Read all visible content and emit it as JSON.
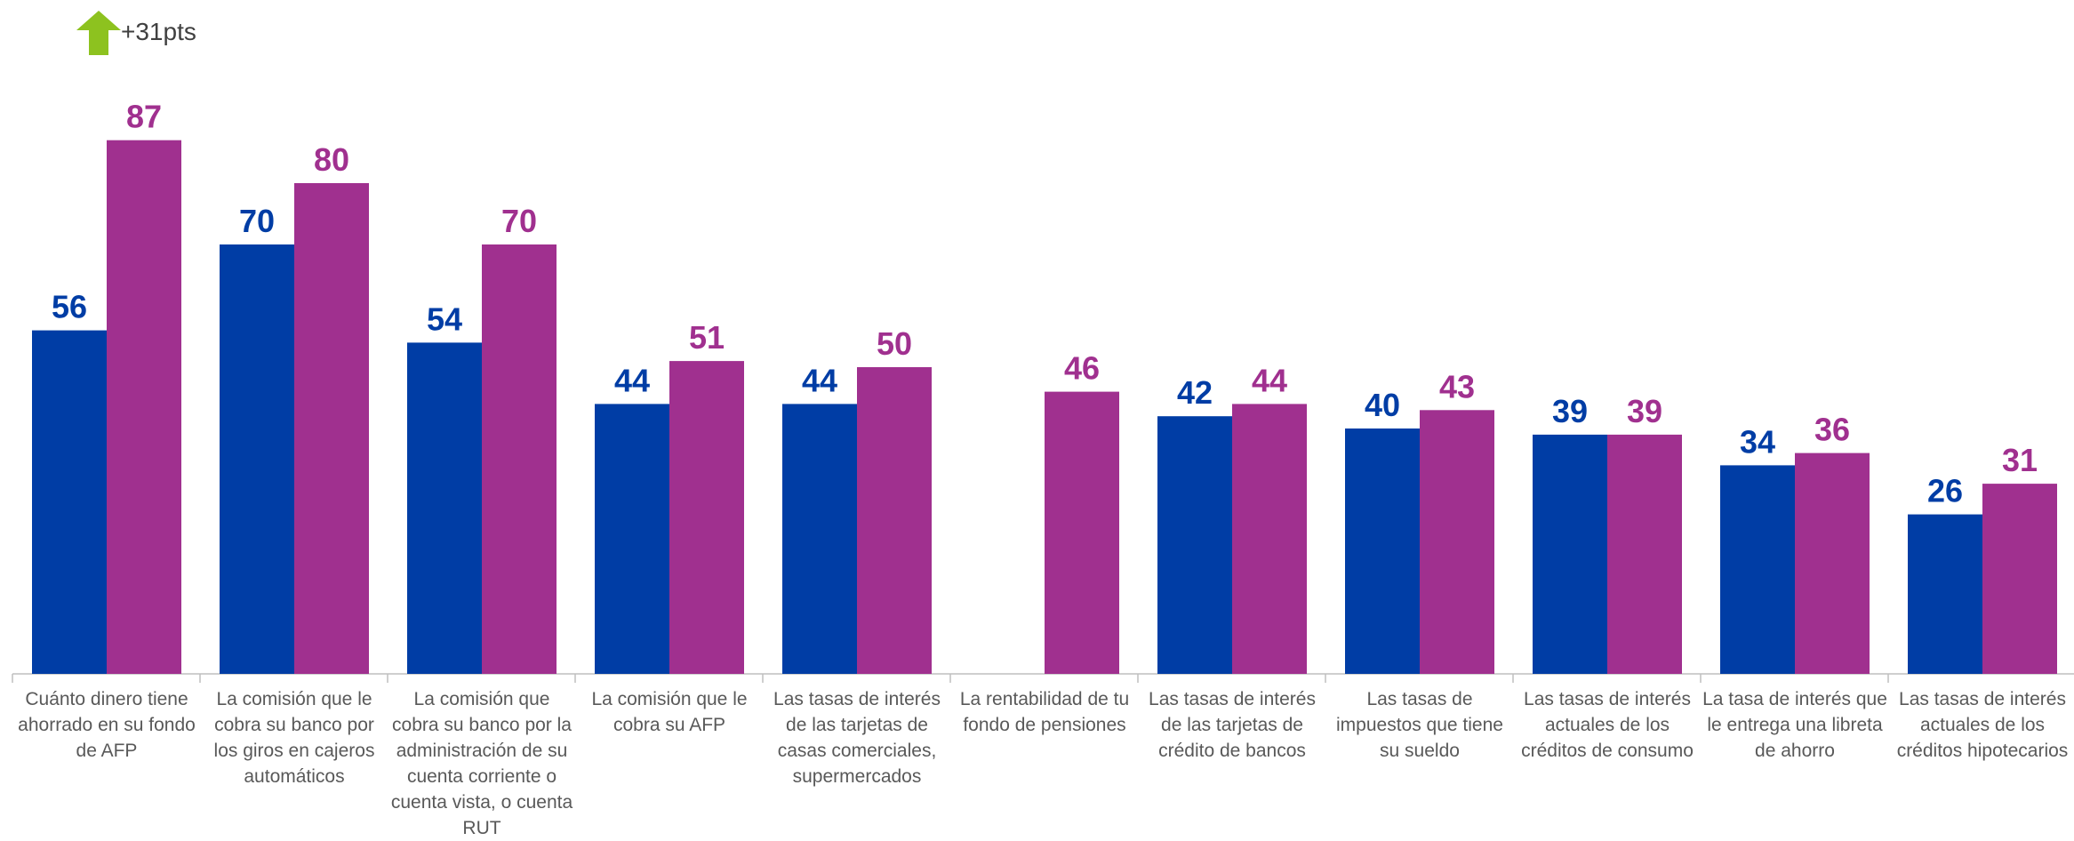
{
  "badge": {
    "text": "+31pts",
    "icon": "up-arrow-icon",
    "color": "#8dc21f"
  },
  "chart_data": {
    "type": "bar",
    "categories": [
      "Cuánto dinero tiene ahorrado en su fondo de AFP",
      "La comisión que le cobra su banco por los giros en cajeros automáticos",
      "La comisión que cobra su banco por la administración de su cuenta corriente o cuenta vista, o cuenta RUT",
      "La comisión que le cobra su AFP",
      "Las tasas de interés de las tarjetas de casas comerciales, supermercados",
      "La rentabilidad de tu fondo de pensiones",
      "Las tasas de interés de las tarjetas de crédito de bancos",
      "Las tasas de impuestos que tiene su sueldo",
      "Las tasas de interés actuales de los créditos de consumo",
      "La tasa de interés que le entrega una libreta de ahorro",
      "Las tasas de interés actuales de los créditos hipotecarios"
    ],
    "series": [
      {
        "values": [
          56,
          70,
          54,
          44,
          44,
          null,
          42,
          40,
          39,
          34,
          26
        ],
        "color": "#003da5"
      },
      {
        "values": [
          87,
          80,
          70,
          51,
          50,
          46,
          44,
          43,
          39,
          36,
          31
        ],
        "color": "#a0308f"
      }
    ],
    "ylim": [
      0,
      95
    ],
    "grid": false
  }
}
